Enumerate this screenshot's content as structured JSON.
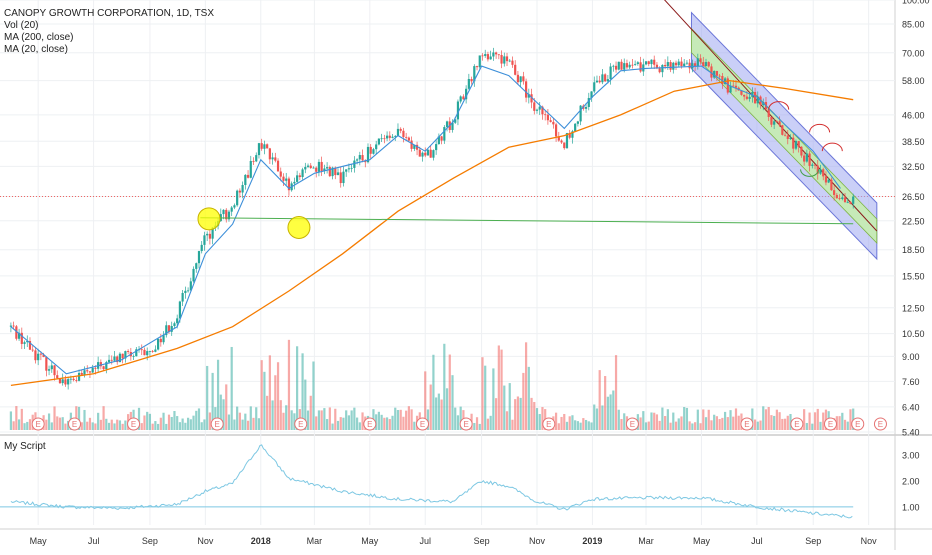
{
  "legend": {
    "symbol_line": "CANOPY GROWTH CORPORATION, 1D, TSX",
    "volume": "Vol (20)",
    "ma200": "MA (200, close)",
    "ma20": "MA (20, close)"
  },
  "oscillator": {
    "title": "My Script"
  },
  "colors": {
    "up": "#26a69a",
    "down": "#ef5350",
    "ma20": "#3d8fd9",
    "ma200": "#f57c00",
    "channel_outer": "#9fa8f0",
    "channel_inner": "#c5ecb0",
    "support_line": "#4caf50",
    "highlight": "#ffff00",
    "oscillator_line": "#7ec8e3"
  },
  "chart_data": [
    {
      "type": "candlestick",
      "yscale": "log",
      "y_ticks": [
        "100.00",
        "85.00",
        "70.00",
        "58.00",
        "46.00",
        "38.50",
        "32.50",
        "26.50",
        "22.50",
        "18.50",
        "15.50",
        "12.50",
        "10.50",
        "9.00",
        "7.60",
        "6.40",
        "5.40"
      ],
      "x_ticks": [
        "May",
        "Jul",
        "Sep",
        "Nov",
        "2018",
        "Mar",
        "May",
        "Jul",
        "Sep",
        "Nov",
        "2019",
        "Mar",
        "May",
        "Jul",
        "Sep",
        "Nov"
      ],
      "bold_x_ticks": [
        "2018",
        "2019"
      ],
      "earnings_marker": "E",
      "earnings_count": 15,
      "price_path": [
        [
          "2017-04-01",
          11.0
        ],
        [
          "2017-05-01",
          9.0
        ],
        [
          "2017-06-01",
          7.5
        ],
        [
          "2017-07-01",
          8.2
        ],
        [
          "2017-08-01",
          9.0
        ],
        [
          "2017-09-01",
          9.2
        ],
        [
          "2017-10-01",
          12.0
        ],
        [
          "2017-11-01",
          20.0
        ],
        [
          "2017-12-01",
          25.0
        ],
        [
          "2018-01-01",
          38.0
        ],
        [
          "2018-02-01",
          28.0
        ],
        [
          "2018-03-01",
          33.0
        ],
        [
          "2018-04-01",
          30.0
        ],
        [
          "2018-05-01",
          36.0
        ],
        [
          "2018-06-01",
          42.0
        ],
        [
          "2018-07-01",
          34.0
        ],
        [
          "2018-08-01",
          45.0
        ],
        [
          "2018-09-01",
          70.0
        ],
        [
          "2018-10-01",
          65.0
        ],
        [
          "2018-11-01",
          48.0
        ],
        [
          "2018-12-01",
          38.0
        ],
        [
          "2019-01-01",
          55.0
        ],
        [
          "2019-02-01",
          65.0
        ],
        [
          "2019-03-01",
          64.0
        ],
        [
          "2019-04-01",
          64.0
        ],
        [
          "2019-05-01",
          66.0
        ],
        [
          "2019-06-01",
          55.0
        ],
        [
          "2019-07-01",
          51.0
        ],
        [
          "2019-08-01",
          40.0
        ],
        [
          "2019-09-01",
          33.0
        ],
        [
          "2019-10-01",
          26.0
        ]
      ],
      "ma20_path": [
        [
          "2017-04-01",
          11.0
        ],
        [
          "2017-06-01",
          8.0
        ],
        [
          "2017-08-01",
          8.8
        ],
        [
          "2017-10-01",
          11.0
        ],
        [
          "2017-11-01",
          18.0
        ],
        [
          "2017-12-01",
          22.0
        ],
        [
          "2018-01-01",
          34.0
        ],
        [
          "2018-02-01",
          28.0
        ],
        [
          "2018-03-01",
          31.0
        ],
        [
          "2018-05-01",
          34.0
        ],
        [
          "2018-06-01",
          40.0
        ],
        [
          "2018-07-01",
          36.0
        ],
        [
          "2018-08-01",
          44.0
        ],
        [
          "2018-09-01",
          64.0
        ],
        [
          "2018-10-01",
          60.0
        ],
        [
          "2018-11-01",
          50.0
        ],
        [
          "2018-12-01",
          42.0
        ],
        [
          "2019-01-01",
          52.0
        ],
        [
          "2019-02-01",
          62.0
        ],
        [
          "2019-03-01",
          63.0
        ],
        [
          "2019-05-01",
          64.0
        ],
        [
          "2019-06-01",
          56.0
        ],
        [
          "2019-07-01",
          52.0
        ],
        [
          "2019-08-01",
          43.0
        ],
        [
          "2019-09-01",
          36.0
        ],
        [
          "2019-10-01",
          28.0
        ]
      ],
      "ma200_path": [
        [
          "2017-04-01",
          7.4
        ],
        [
          "2017-07-01",
          8.0
        ],
        [
          "2017-10-01",
          9.5
        ],
        [
          "2017-12-01",
          11.0
        ],
        [
          "2018-02-01",
          14.0
        ],
        [
          "2018-04-01",
          18.0
        ],
        [
          "2018-06-01",
          24.0
        ],
        [
          "2018-08-01",
          30.0
        ],
        [
          "2018-10-01",
          37.0
        ],
        [
          "2018-12-01",
          40.0
        ],
        [
          "2019-02-01",
          46.0
        ],
        [
          "2019-04-01",
          54.0
        ],
        [
          "2019-06-01",
          58.0
        ],
        [
          "2019-08-01",
          55.0
        ],
        [
          "2019-10-15",
          51.0
        ]
      ],
      "support_line": {
        "price": 22.5,
        "from": "2017-11-01",
        "to": "2019-10-15"
      },
      "resistance_level": 26.5,
      "channel": {
        "from": "2019-04-20",
        "to": "2019-11-10",
        "start_price": 76.0,
        "end_price": 21.0
      }
    },
    {
      "type": "line",
      "name": "My Script",
      "y_ticks": [
        "3.00",
        "2.00",
        "1.00"
      ],
      "reference_line": 1.0,
      "points": [
        [
          "2017-04-01",
          1.2
        ],
        [
          "2017-06-01",
          1.0
        ],
        [
          "2017-08-01",
          0.95
        ],
        [
          "2017-10-01",
          1.1
        ],
        [
          "2017-11-01",
          1.6
        ],
        [
          "2017-12-01",
          1.9
        ],
        [
          "2018-01-01",
          3.4
        ],
        [
          "2018-02-01",
          2.1
        ],
        [
          "2018-04-01",
          1.6
        ],
        [
          "2018-06-01",
          1.3
        ],
        [
          "2018-08-01",
          1.2
        ],
        [
          "2018-09-01",
          2.0
        ],
        [
          "2018-10-01",
          1.8
        ],
        [
          "2018-11-01",
          1.2
        ],
        [
          "2018-12-01",
          0.9
        ],
        [
          "2019-01-01",
          1.3
        ],
        [
          "2019-03-01",
          1.35
        ],
        [
          "2019-05-01",
          1.35
        ],
        [
          "2019-07-01",
          1.0
        ],
        [
          "2019-09-01",
          0.75
        ],
        [
          "2019-10-15",
          0.6
        ]
      ]
    }
  ]
}
